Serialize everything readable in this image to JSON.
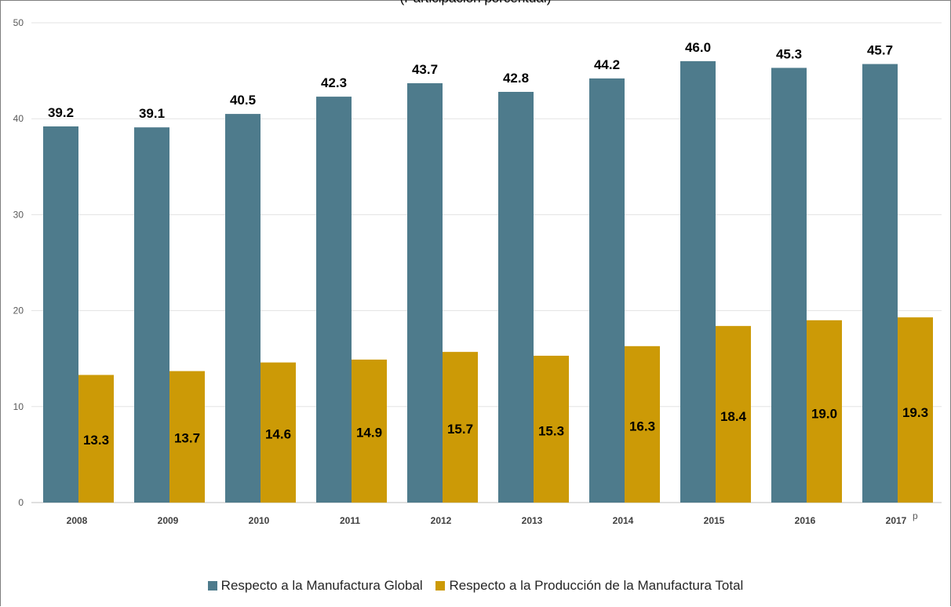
{
  "chart_data": {
    "type": "bar",
    "subtitle": "(Participación porcentual)",
    "categories": [
      "2008",
      "2009",
      "2010",
      "2011",
      "2012",
      "2013",
      "2014",
      "2015",
      "2016",
      "2017"
    ],
    "category_superscripts": {
      "2017": "p"
    },
    "ylim": [
      0,
      50
    ],
    "yticks": [
      0,
      10,
      20,
      30,
      40,
      50
    ],
    "grid": true,
    "legend_position": "bottom",
    "series": [
      {
        "name": "Respecto a la Manufactura Global",
        "color": "#4e7b8c",
        "values": [
          39.2,
          39.1,
          40.5,
          42.3,
          43.7,
          42.8,
          44.2,
          46.0,
          45.3,
          45.7
        ],
        "labels": [
          "39.2",
          "39.1",
          "40.5",
          "42.3",
          "43.7",
          "42.8",
          "44.2",
          "46.0",
          "45.3",
          "45.7"
        ]
      },
      {
        "name": "Respecto a la Producción de la Manufactura Total",
        "color": "#cc9a06",
        "values": [
          13.3,
          13.7,
          14.6,
          14.9,
          15.7,
          15.3,
          16.3,
          18.4,
          19.0,
          19.3
        ],
        "labels": [
          "13.3",
          "13.7",
          "14.6",
          "14.9",
          "15.7",
          "15.3",
          "16.3",
          "18.4",
          "19.0",
          "19.3"
        ]
      }
    ]
  }
}
